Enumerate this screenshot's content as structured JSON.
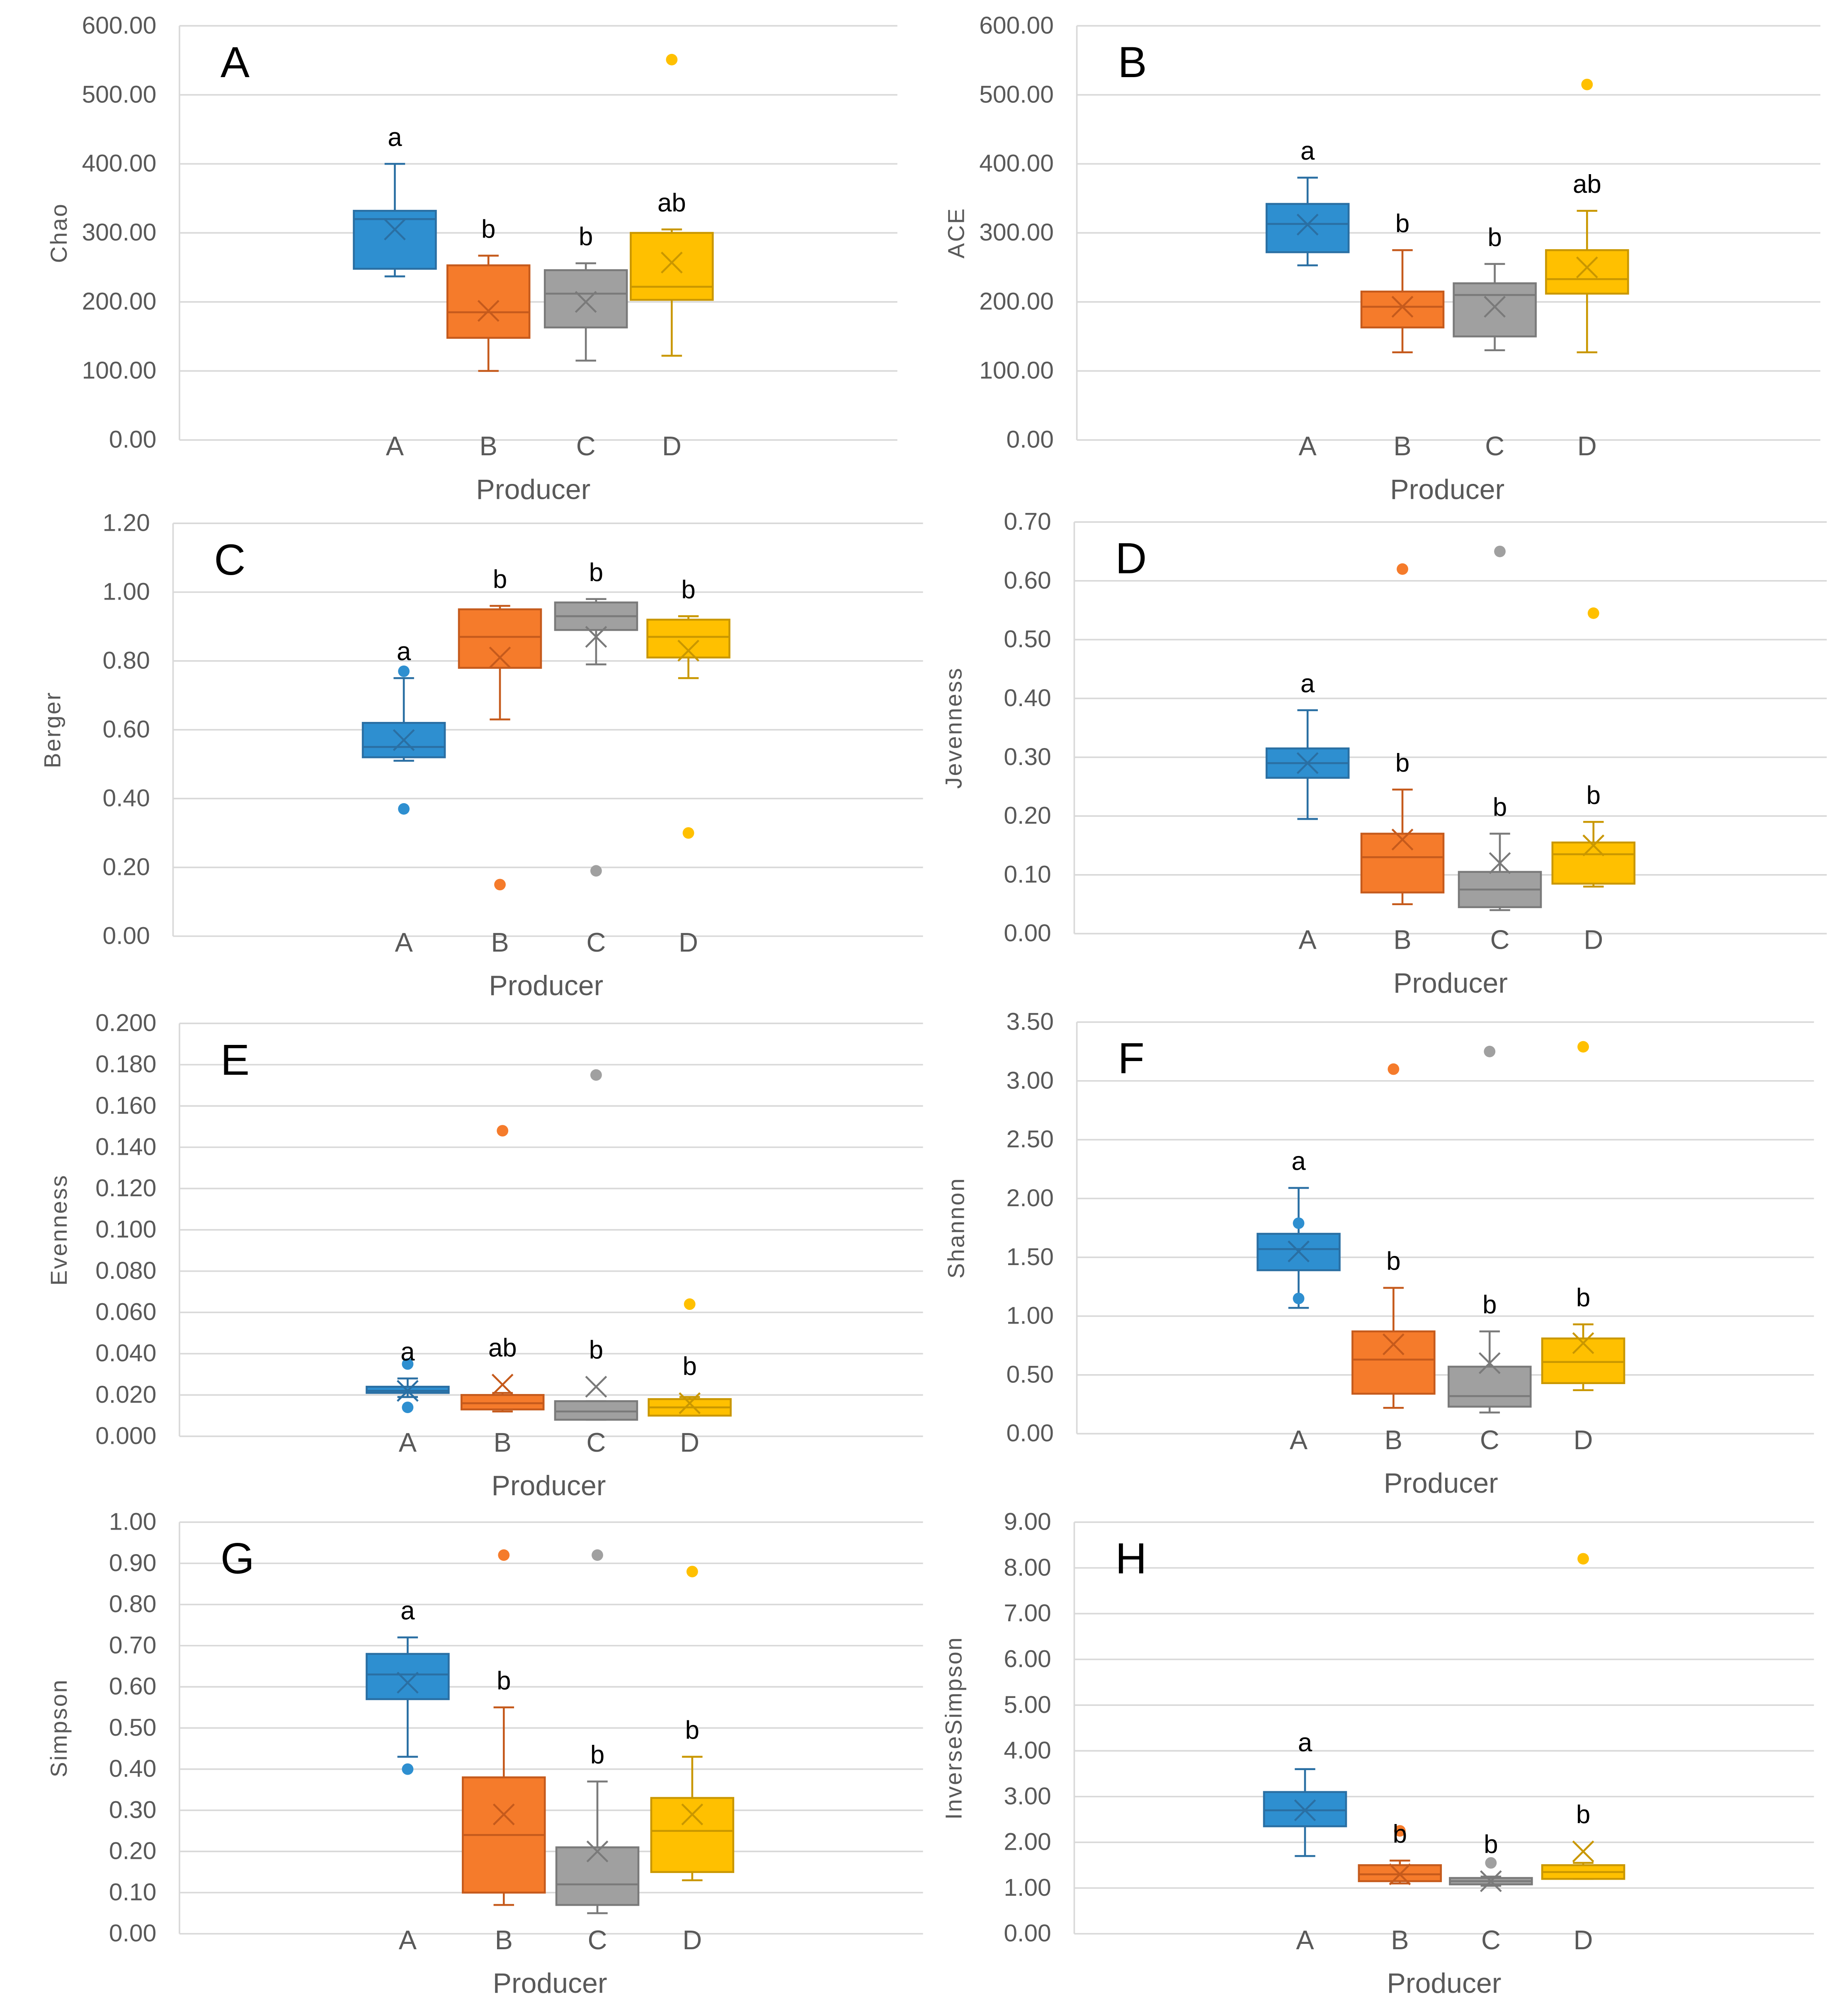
{
  "colors": {
    "A": "#2e8fd0",
    "B": "#f57b2b",
    "C": "#a0a0a0",
    "D": "#ffc000",
    "grid": "#d9d9d9"
  },
  "chart_data": [
    {
      "type": "box",
      "panel": "A",
      "ylabel": "Chao",
      "xlabel": "Producer",
      "categories": [
        "A",
        "B",
        "C",
        "D"
      ],
      "ylim": [
        0,
        600
      ],
      "ystep": 100,
      "decimals": 2,
      "boxes": [
        {
          "min": 237,
          "q1": 248,
          "median": 320,
          "q3": 332,
          "max": 400,
          "mean": 305,
          "outliers": [],
          "letter": "a"
        },
        {
          "min": 100,
          "q1": 148,
          "median": 185,
          "q3": 253,
          "max": 267,
          "mean": 187,
          "outliers": [],
          "letter": "b"
        },
        {
          "min": 115,
          "q1": 163,
          "median": 212,
          "q3": 246,
          "max": 256,
          "mean": 200,
          "outliers": [],
          "letter": "b"
        },
        {
          "min": 122,
          "q1": 203,
          "median": 222,
          "q3": 300,
          "max": 305,
          "mean": 257,
          "outliers": [
            551
          ],
          "letter": "ab"
        }
      ]
    },
    {
      "type": "box",
      "panel": "B",
      "ylabel": "ACE",
      "xlabel": "Producer",
      "categories": [
        "A",
        "B",
        "C",
        "D"
      ],
      "ylim": [
        0,
        600
      ],
      "ystep": 100,
      "decimals": 2,
      "boxes": [
        {
          "min": 253,
          "q1": 272,
          "median": 313,
          "q3": 342,
          "max": 380,
          "mean": 312,
          "outliers": [],
          "letter": "a"
        },
        {
          "min": 127,
          "q1": 163,
          "median": 193,
          "q3": 215,
          "max": 275,
          "mean": 193,
          "outliers": [],
          "letter": "b"
        },
        {
          "min": 130,
          "q1": 150,
          "median": 210,
          "q3": 227,
          "max": 255,
          "mean": 193,
          "outliers": [],
          "letter": "b"
        },
        {
          "min": 127,
          "q1": 212,
          "median": 233,
          "q3": 275,
          "max": 332,
          "mean": 250,
          "outliers": [
            515
          ],
          "letter": "ab"
        }
      ]
    },
    {
      "type": "box",
      "panel": "C",
      "ylabel": "Berger",
      "xlabel": "Producer",
      "categories": [
        "A",
        "B",
        "C",
        "D"
      ],
      "ylim": [
        0,
        1.2
      ],
      "ystep": 0.2,
      "decimals": 2,
      "boxes": [
        {
          "min": 0.51,
          "q1": 0.52,
          "median": 0.55,
          "q3": 0.62,
          "max": 0.75,
          "mean": 0.57,
          "outliers": [
            0.37,
            0.77
          ],
          "letter": "a"
        },
        {
          "min": 0.63,
          "q1": 0.78,
          "median": 0.87,
          "q3": 0.95,
          "max": 0.96,
          "mean": 0.81,
          "outliers": [
            0.15
          ],
          "letter": "b"
        },
        {
          "min": 0.79,
          "q1": 0.89,
          "median": 0.93,
          "q3": 0.97,
          "max": 0.98,
          "mean": 0.87,
          "outliers": [
            0.19
          ],
          "letter": "b"
        },
        {
          "min": 0.75,
          "q1": 0.81,
          "median": 0.87,
          "q3": 0.92,
          "max": 0.93,
          "mean": 0.83,
          "outliers": [
            0.3
          ],
          "letter": "b"
        }
      ]
    },
    {
      "type": "box",
      "panel": "D",
      "ylabel": "Jevenness",
      "xlabel": "Producer",
      "categories": [
        "A",
        "B",
        "C",
        "D"
      ],
      "ylim": [
        0,
        0.7
      ],
      "ystep": 0.1,
      "decimals": 2,
      "boxes": [
        {
          "min": 0.195,
          "q1": 0.265,
          "median": 0.29,
          "q3": 0.315,
          "max": 0.38,
          "mean": 0.29,
          "outliers": [],
          "letter": "a"
        },
        {
          "min": 0.05,
          "q1": 0.07,
          "median": 0.13,
          "q3": 0.17,
          "max": 0.245,
          "mean": 0.16,
          "outliers": [
            0.62
          ],
          "letter": "b"
        },
        {
          "min": 0.04,
          "q1": 0.045,
          "median": 0.075,
          "q3": 0.105,
          "max": 0.17,
          "mean": 0.12,
          "outliers": [
            0.65
          ],
          "letter": "b"
        },
        {
          "min": 0.08,
          "q1": 0.085,
          "median": 0.135,
          "q3": 0.155,
          "max": 0.19,
          "mean": 0.15,
          "outliers": [
            0.545
          ],
          "letter": "b"
        }
      ]
    },
    {
      "type": "box",
      "panel": "E",
      "ylabel": "Evenness",
      "xlabel": "Producer",
      "categories": [
        "A",
        "B",
        "C",
        "D"
      ],
      "ylim": [
        0,
        0.2
      ],
      "ystep": 0.02,
      "decimals": 3,
      "boxes": [
        {
          "min": 0.019,
          "q1": 0.021,
          "median": 0.022,
          "q3": 0.024,
          "max": 0.028,
          "mean": 0.022,
          "outliers": [
            0.014,
            0.035
          ],
          "letter": "a"
        },
        {
          "min": 0.012,
          "q1": 0.013,
          "median": 0.016,
          "q3": 0.02,
          "max": 0.021,
          "mean": 0.025,
          "outliers": [
            0.148
          ],
          "letter": "ab"
        },
        {
          "min": 0.008,
          "q1": 0.008,
          "median": 0.012,
          "q3": 0.017,
          "max": 0.017,
          "mean": 0.024,
          "outliers": [
            0.175
          ],
          "letter": "b"
        },
        {
          "min": 0.01,
          "q1": 0.01,
          "median": 0.014,
          "q3": 0.018,
          "max": 0.019,
          "mean": 0.016,
          "outliers": [
            0.064
          ],
          "letter": "b"
        }
      ]
    },
    {
      "type": "box",
      "panel": "F",
      "ylabel": "Shannon",
      "xlabel": "Producer",
      "categories": [
        "A",
        "B",
        "C",
        "D"
      ],
      "ylim": [
        0,
        3.5
      ],
      "ystep": 0.5,
      "decimals": 2,
      "boxes": [
        {
          "min": 1.07,
          "q1": 1.39,
          "median": 1.57,
          "q3": 1.7,
          "max": 2.09,
          "mean": 1.55,
          "outliers": [
            1.15,
            1.79
          ],
          "letter": "a"
        },
        {
          "min": 0.22,
          "q1": 0.34,
          "median": 0.63,
          "q3": 0.87,
          "max": 1.24,
          "mean": 0.76,
          "outliers": [
            3.1
          ],
          "letter": "b"
        },
        {
          "min": 0.18,
          "q1": 0.23,
          "median": 0.32,
          "q3": 0.57,
          "max": 0.87,
          "mean": 0.6,
          "outliers": [
            3.25
          ],
          "letter": "b"
        },
        {
          "min": 0.37,
          "q1": 0.43,
          "median": 0.61,
          "q3": 0.81,
          "max": 0.93,
          "mean": 0.77,
          "outliers": [
            3.29
          ],
          "letter": "b"
        }
      ]
    },
    {
      "type": "box",
      "panel": "G",
      "ylabel": "Simpson",
      "xlabel": "Producer",
      "categories": [
        "A",
        "B",
        "C",
        "D"
      ],
      "ylim": [
        0,
        1.0
      ],
      "ystep": 0.1,
      "decimals": 2,
      "boxes": [
        {
          "min": 0.43,
          "q1": 0.57,
          "median": 0.63,
          "q3": 0.68,
          "max": 0.72,
          "mean": 0.61,
          "outliers": [
            0.4
          ],
          "letter": "a"
        },
        {
          "min": 0.07,
          "q1": 0.1,
          "median": 0.24,
          "q3": 0.38,
          "max": 0.55,
          "mean": 0.29,
          "outliers": [
            0.92
          ],
          "letter": "b"
        },
        {
          "min": 0.05,
          "q1": 0.07,
          "median": 0.12,
          "q3": 0.21,
          "max": 0.37,
          "mean": 0.2,
          "outliers": [
            0.92
          ],
          "letter": "b"
        },
        {
          "min": 0.13,
          "q1": 0.15,
          "median": 0.25,
          "q3": 0.33,
          "max": 0.43,
          "mean": 0.29,
          "outliers": [
            0.88
          ],
          "letter": "b"
        }
      ]
    },
    {
      "type": "box",
      "panel": "H",
      "ylabel": "InverseSimpson",
      "xlabel": "Producer",
      "categories": [
        "A",
        "B",
        "C",
        "D"
      ],
      "ylim": [
        0,
        9
      ],
      "ystep": 1,
      "decimals": 2,
      "boxes": [
        {
          "min": 1.7,
          "q1": 2.35,
          "median": 2.7,
          "q3": 3.1,
          "max": 3.6,
          "mean": 2.7,
          "outliers": [],
          "letter": "a"
        },
        {
          "min": 1.1,
          "q1": 1.15,
          "median": 1.3,
          "q3": 1.5,
          "max": 1.6,
          "mean": 1.3,
          "outliers": [
            2.25
          ],
          "letter": "b"
        },
        {
          "min": 1.05,
          "q1": 1.08,
          "median": 1.15,
          "q3": 1.22,
          "max": 1.25,
          "mean": 1.15,
          "outliers": [
            1.55
          ],
          "letter": "b"
        },
        {
          "min": 1.2,
          "q1": 1.2,
          "median": 1.35,
          "q3": 1.5,
          "max": 1.55,
          "mean": 1.8,
          "outliers": [
            8.2
          ],
          "letter": "b"
        }
      ]
    }
  ]
}
